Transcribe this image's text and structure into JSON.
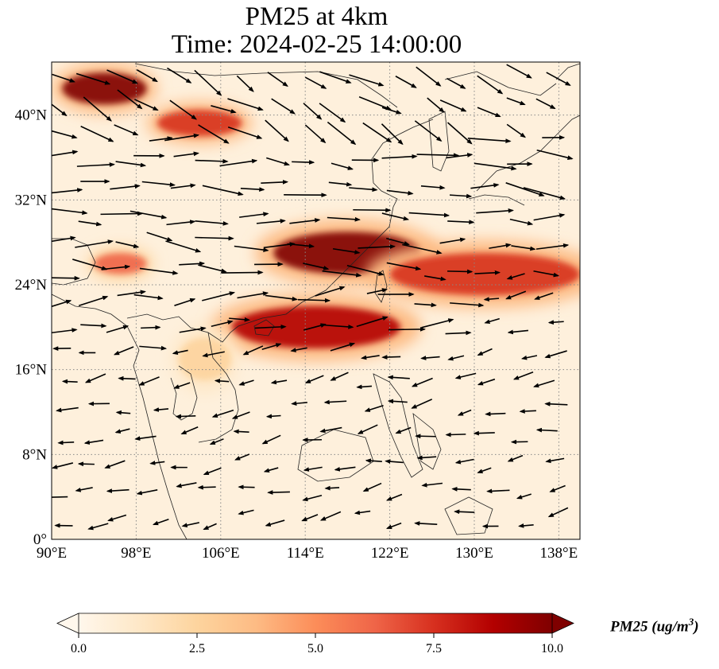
{
  "figure": {
    "title_line1": "PM25 at 4km",
    "title_line2": "Time: 2024-02-25 14:00:00",
    "lon_ticks": [
      "90°E",
      "98°E",
      "106°E",
      "114°E",
      "122°E",
      "130°E",
      "138°E"
    ],
    "lat_ticks": [
      "40°N",
      "32°N",
      "24°N",
      "16°N",
      "8°N",
      "0°"
    ],
    "colorbar": {
      "label": "PM25 (ug/m",
      "label_sup": "3",
      "label_close": ")",
      "ticks": [
        "0.0",
        "2.5",
        "5.0",
        "7.5",
        "10.0"
      ],
      "vmin": 0,
      "vmax": 10,
      "colormap": "OrRd",
      "extend": "both"
    },
    "extent": {
      "lon_min": 90,
      "lon_max": 140,
      "lat_min": 0,
      "lat_max": 45
    },
    "gridlines": "dotted"
  },
  "chart_data": {
    "type": "heatmap",
    "variable": "PM25",
    "level": "4km",
    "time": "2024-02-25 14:00:00",
    "units": "ug/m3",
    "plumes": [
      {
        "lon": [
          91,
          99
        ],
        "lat": [
          41,
          44
        ],
        "value": 9.5
      },
      {
        "lon": [
          100,
          108
        ],
        "lat": [
          38,
          40.5
        ],
        "value": 7
      },
      {
        "lon": [
          111,
          125
        ],
        "lat": [
          25,
          29
        ],
        "value": 9.5
      },
      {
        "lon": [
          122,
          140
        ],
        "lat": [
          23,
          27
        ],
        "value": 7.5
      },
      {
        "lon": [
          107,
          123
        ],
        "lat": [
          18,
          22
        ],
        "value": 8.5
      },
      {
        "lon": [
          94,
          99
        ],
        "lat": [
          25,
          27
        ],
        "value": 6
      },
      {
        "lon": [
          102,
          107
        ],
        "lat": [
          15,
          19
        ],
        "value": 3
      }
    ],
    "wind_regimes": [
      {
        "lat": [
          38,
          45
        ],
        "lon": [
          90,
          140
        ],
        "direction_deg_from_north": 120,
        "relative_speed": 1.0
      },
      {
        "lat": [
          25,
          38
        ],
        "lon": [
          90,
          140
        ],
        "direction_deg_from_north": 95,
        "relative_speed": 1.2
      },
      {
        "lat": [
          18,
          25
        ],
        "lon": [
          90,
          130
        ],
        "direction_deg_from_north": 85,
        "relative_speed": 1.0
      },
      {
        "lat": [
          0,
          18
        ],
        "lon": [
          90,
          140
        ],
        "direction_deg_from_north": 260,
        "relative_speed": 0.5
      }
    ]
  }
}
